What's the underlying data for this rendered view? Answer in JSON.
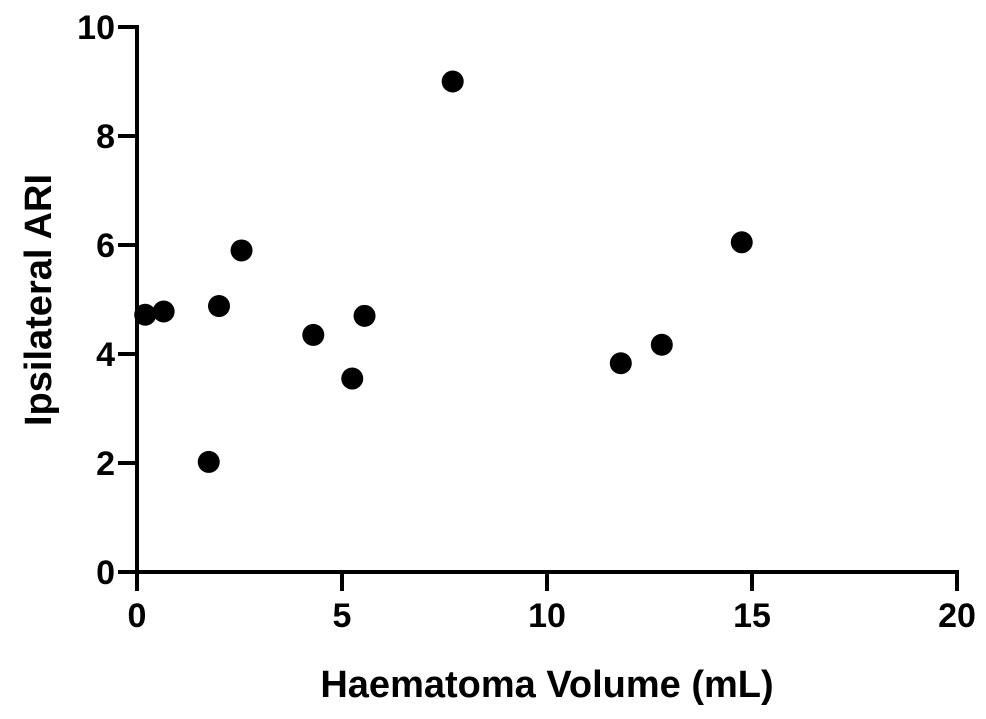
{
  "chart_data": {
    "type": "scatter",
    "title": "",
    "xlabel": "Haematoma Volume (mL)",
    "ylabel": "Ipsilateral ARI",
    "xlim": [
      0,
      20
    ],
    "ylim": [
      0,
      10
    ],
    "x_ticks": [
      0,
      5,
      10,
      15,
      20
    ],
    "y_ticks": [
      0,
      2,
      4,
      6,
      8,
      10
    ],
    "x_tick_labels": [
      "0",
      "5",
      "10",
      "15",
      "20"
    ],
    "y_tick_labels": [
      "0",
      "2",
      "4",
      "6",
      "8",
      "10"
    ],
    "grid": false,
    "marker_color": "#000000",
    "series": [
      {
        "points": [
          {
            "x": 0.2,
            "y": 4.72
          },
          {
            "x": 0.65,
            "y": 4.78
          },
          {
            "x": 1.75,
            "y": 2.02
          },
          {
            "x": 2.0,
            "y": 4.88
          },
          {
            "x": 2.55,
            "y": 5.9
          },
          {
            "x": 4.3,
            "y": 4.35
          },
          {
            "x": 5.25,
            "y": 3.55
          },
          {
            "x": 5.55,
            "y": 4.7
          },
          {
            "x": 7.7,
            "y": 9.0
          },
          {
            "x": 11.8,
            "y": 3.83
          },
          {
            "x": 12.8,
            "y": 4.17
          },
          {
            "x": 14.75,
            "y": 6.05
          }
        ]
      }
    ]
  }
}
